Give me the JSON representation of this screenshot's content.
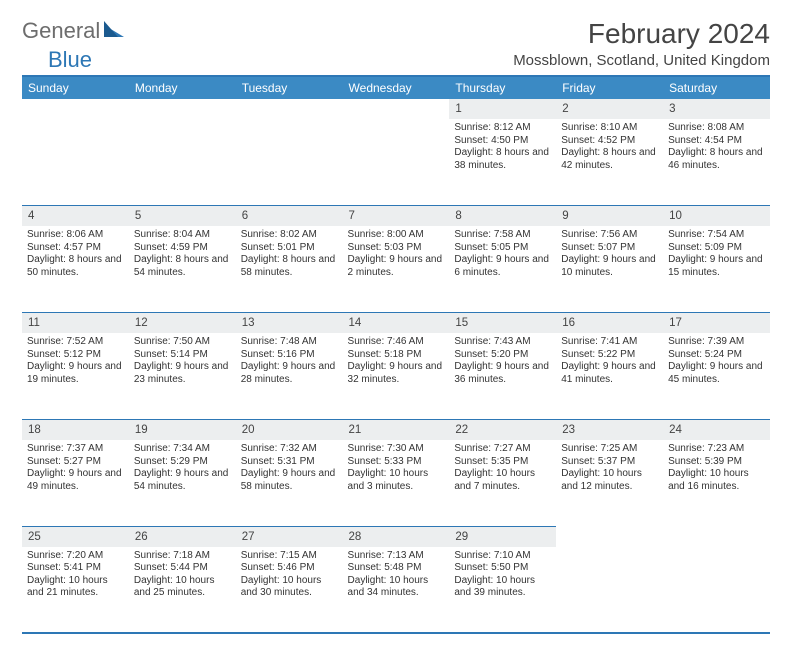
{
  "brand": {
    "part1": "General",
    "part2": "Blue"
  },
  "header": {
    "title": "February 2024",
    "location": "Mossblown, Scotland, United Kingdom"
  },
  "colors": {
    "header_bar": "#3b8ac4",
    "accent_border": "#2d77b5",
    "daynum_bg": "#eceeef",
    "text": "#333333",
    "title_text": "#444444",
    "logo_gray": "#6d6d6d"
  },
  "fonts": {
    "title_pt": 28,
    "location_pt": 15,
    "dow_pt": 12,
    "cell_pt": 10
  },
  "days_of_week": [
    "Sunday",
    "Monday",
    "Tuesday",
    "Wednesday",
    "Thursday",
    "Friday",
    "Saturday"
  ],
  "first_weekday_index": 4,
  "days": [
    {
      "n": 1,
      "sunrise": "8:12 AM",
      "sunset": "4:50 PM",
      "daylight": "8 hours and 38 minutes."
    },
    {
      "n": 2,
      "sunrise": "8:10 AM",
      "sunset": "4:52 PM",
      "daylight": "8 hours and 42 minutes."
    },
    {
      "n": 3,
      "sunrise": "8:08 AM",
      "sunset": "4:54 PM",
      "daylight": "8 hours and 46 minutes."
    },
    {
      "n": 4,
      "sunrise": "8:06 AM",
      "sunset": "4:57 PM",
      "daylight": "8 hours and 50 minutes."
    },
    {
      "n": 5,
      "sunrise": "8:04 AM",
      "sunset": "4:59 PM",
      "daylight": "8 hours and 54 minutes."
    },
    {
      "n": 6,
      "sunrise": "8:02 AM",
      "sunset": "5:01 PM",
      "daylight": "8 hours and 58 minutes."
    },
    {
      "n": 7,
      "sunrise": "8:00 AM",
      "sunset": "5:03 PM",
      "daylight": "9 hours and 2 minutes."
    },
    {
      "n": 8,
      "sunrise": "7:58 AM",
      "sunset": "5:05 PM",
      "daylight": "9 hours and 6 minutes."
    },
    {
      "n": 9,
      "sunrise": "7:56 AM",
      "sunset": "5:07 PM",
      "daylight": "9 hours and 10 minutes."
    },
    {
      "n": 10,
      "sunrise": "7:54 AM",
      "sunset": "5:09 PM",
      "daylight": "9 hours and 15 minutes."
    },
    {
      "n": 11,
      "sunrise": "7:52 AM",
      "sunset": "5:12 PM",
      "daylight": "9 hours and 19 minutes."
    },
    {
      "n": 12,
      "sunrise": "7:50 AM",
      "sunset": "5:14 PM",
      "daylight": "9 hours and 23 minutes."
    },
    {
      "n": 13,
      "sunrise": "7:48 AM",
      "sunset": "5:16 PM",
      "daylight": "9 hours and 28 minutes."
    },
    {
      "n": 14,
      "sunrise": "7:46 AM",
      "sunset": "5:18 PM",
      "daylight": "9 hours and 32 minutes."
    },
    {
      "n": 15,
      "sunrise": "7:43 AM",
      "sunset": "5:20 PM",
      "daylight": "9 hours and 36 minutes."
    },
    {
      "n": 16,
      "sunrise": "7:41 AM",
      "sunset": "5:22 PM",
      "daylight": "9 hours and 41 minutes."
    },
    {
      "n": 17,
      "sunrise": "7:39 AM",
      "sunset": "5:24 PM",
      "daylight": "9 hours and 45 minutes."
    },
    {
      "n": 18,
      "sunrise": "7:37 AM",
      "sunset": "5:27 PM",
      "daylight": "9 hours and 49 minutes."
    },
    {
      "n": 19,
      "sunrise": "7:34 AM",
      "sunset": "5:29 PM",
      "daylight": "9 hours and 54 minutes."
    },
    {
      "n": 20,
      "sunrise": "7:32 AM",
      "sunset": "5:31 PM",
      "daylight": "9 hours and 58 minutes."
    },
    {
      "n": 21,
      "sunrise": "7:30 AM",
      "sunset": "5:33 PM",
      "daylight": "10 hours and 3 minutes."
    },
    {
      "n": 22,
      "sunrise": "7:27 AM",
      "sunset": "5:35 PM",
      "daylight": "10 hours and 7 minutes."
    },
    {
      "n": 23,
      "sunrise": "7:25 AM",
      "sunset": "5:37 PM",
      "daylight": "10 hours and 12 minutes."
    },
    {
      "n": 24,
      "sunrise": "7:23 AM",
      "sunset": "5:39 PM",
      "daylight": "10 hours and 16 minutes."
    },
    {
      "n": 25,
      "sunrise": "7:20 AM",
      "sunset": "5:41 PM",
      "daylight": "10 hours and 21 minutes."
    },
    {
      "n": 26,
      "sunrise": "7:18 AM",
      "sunset": "5:44 PM",
      "daylight": "10 hours and 25 minutes."
    },
    {
      "n": 27,
      "sunrise": "7:15 AM",
      "sunset": "5:46 PM",
      "daylight": "10 hours and 30 minutes."
    },
    {
      "n": 28,
      "sunrise": "7:13 AM",
      "sunset": "5:48 PM",
      "daylight": "10 hours and 34 minutes."
    },
    {
      "n": 29,
      "sunrise": "7:10 AM",
      "sunset": "5:50 PM",
      "daylight": "10 hours and 39 minutes."
    }
  ],
  "labels": {
    "sunrise": "Sunrise:",
    "sunset": "Sunset:",
    "daylight": "Daylight:"
  }
}
